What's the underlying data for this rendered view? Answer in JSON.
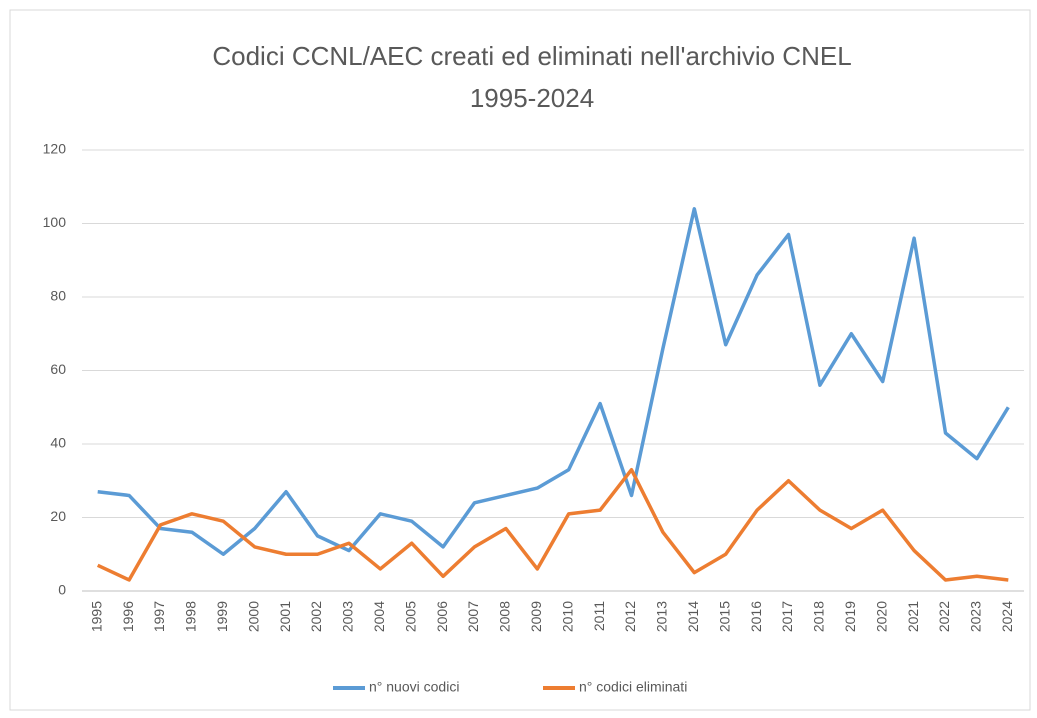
{
  "chart_data": {
    "type": "line",
    "title": "Codici CCNL/AEC creati ed eliminati nell'archivio CNEL",
    "subtitle": "1995-2024",
    "categories": [
      "1995",
      "1996",
      "1997",
      "1998",
      "1999",
      "2000",
      "2001",
      "2002",
      "2003",
      "2004",
      "2005",
      "2006",
      "2007",
      "2008",
      "2009",
      "2010",
      "2011",
      "2012",
      "2013",
      "2014",
      "2015",
      "2016",
      "2017",
      "2018",
      "2019",
      "2020",
      "2021",
      "2022",
      "2023",
      "2024"
    ],
    "series": [
      {
        "name": "n° nuovi codici",
        "color": "#5b9bd5",
        "values": [
          27,
          26,
          17,
          16,
          10,
          17,
          27,
          15,
          11,
          21,
          19,
          12,
          24,
          26,
          28,
          33,
          51,
          26,
          66,
          104,
          67,
          86,
          97,
          56,
          70,
          57,
          96,
          43,
          36,
          50
        ]
      },
      {
        "name": "n° codici eliminati",
        "color": "#ed7d31",
        "values": [
          7,
          3,
          18,
          21,
          19,
          12,
          10,
          10,
          13,
          6,
          13,
          4,
          12,
          17,
          6,
          21,
          22,
          33,
          16,
          5,
          10,
          22,
          30,
          22,
          17,
          22,
          11,
          3,
          4,
          3
        ]
      }
    ],
    "ylim": [
      0,
      120
    ],
    "yticks": [
      0,
      20,
      40,
      60,
      80,
      100,
      120
    ],
    "grid": true,
    "legend": "bottom"
  }
}
